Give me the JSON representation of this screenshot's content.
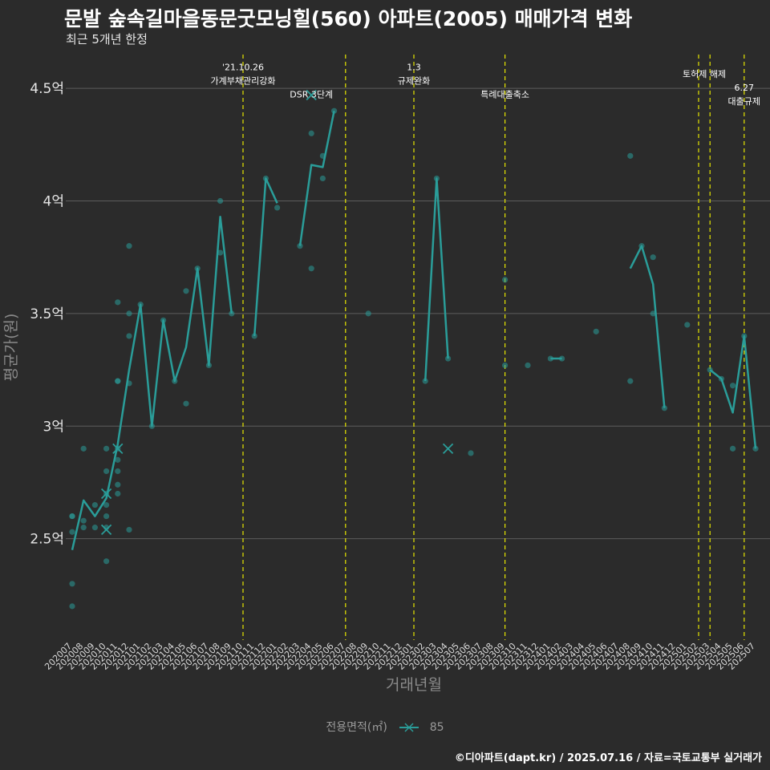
{
  "title": "문발 숲속길마을동문굿모닝힐(560) 아파트(2005) 매매가격 변화",
  "subtitle": "최근 5개년 한정",
  "caption": "©디아파트(dapt.kr) / 2025.07.16 / 자료=국토교통부 실거래가",
  "colors": {
    "background": "#2b2b2b",
    "series": "#2a9d99",
    "vline": "#e6e600",
    "grid": "#5c5c5c"
  },
  "legend": {
    "title": "전용면적(㎡)",
    "label": "85"
  },
  "chart_data": {
    "type": "line",
    "xlabel": "거래년월",
    "ylabel": "평균가(원)",
    "ylim": [
      2.05,
      4.65
    ],
    "y_ticks": [
      {
        "v": 2.5,
        "label": "2.5억"
      },
      {
        "v": 3.0,
        "label": "3억"
      },
      {
        "v": 3.5,
        "label": "3.5억"
      },
      {
        "v": 4.0,
        "label": "4억"
      },
      {
        "v": 4.5,
        "label": "4.5억"
      }
    ],
    "categories": [
      "202007",
      "202008",
      "202009",
      "202010",
      "202011",
      "202012",
      "202101",
      "202102",
      "202103",
      "202104",
      "202105",
      "202106",
      "202107",
      "202108",
      "202109",
      "202110",
      "202111",
      "202112",
      "202201",
      "202202",
      "202203",
      "202204",
      "202205",
      "202206",
      "202207",
      "202208",
      "202209",
      "202210",
      "202211",
      "202212",
      "202301",
      "202302",
      "202303",
      "202304",
      "202305",
      "202306",
      "202307",
      "202308",
      "202309",
      "202310",
      "202311",
      "202312",
      "202401",
      "202402",
      "202403",
      "202404",
      "202405",
      "202406",
      "202407",
      "202408",
      "202409",
      "202410",
      "202411",
      "202412",
      "202501",
      "202502",
      "202503",
      "202504",
      "202505",
      "202506",
      "202507"
    ],
    "series": [
      {
        "name": "85",
        "segments": [
          [
            [
              0,
              2.45
            ],
            [
              1,
              2.67
            ],
            [
              2,
              2.6
            ],
            [
              3,
              2.68
            ],
            [
              4,
              2.92
            ],
            [
              5,
              3.25
            ],
            [
              6,
              3.54
            ],
            [
              7,
              3.0
            ],
            [
              8,
              3.47
            ],
            [
              9,
              3.2
            ],
            [
              10,
              3.35
            ],
            [
              11,
              3.7
            ],
            [
              12,
              3.27
            ],
            [
              13,
              3.93
            ],
            [
              14,
              3.5
            ]
          ],
          [
            [
              16,
              3.4
            ],
            [
              17,
              4.1
            ],
            [
              18,
              3.99
            ]
          ],
          [
            [
              20,
              3.8
            ],
            [
              21,
              4.16
            ],
            [
              22,
              4.15
            ],
            [
              23,
              4.4
            ]
          ],
          [
            [
              31,
              3.2
            ],
            [
              32,
              4.1
            ],
            [
              33,
              3.3
            ]
          ],
          [
            [
              42,
              3.3
            ],
            [
              43,
              3.3
            ]
          ],
          [
            [
              49,
              3.7
            ],
            [
              50,
              3.8
            ],
            [
              51,
              3.63
            ],
            [
              52,
              3.08
            ]
          ],
          [
            [
              56,
              3.25
            ],
            [
              57,
              3.21
            ],
            [
              58,
              3.06
            ],
            [
              59,
              3.4
            ],
            [
              60,
              2.9
            ]
          ]
        ]
      }
    ],
    "points": [
      [
        0,
        2.6
      ],
      [
        0,
        2.53
      ],
      [
        0,
        2.3
      ],
      [
        0,
        2.2
      ],
      [
        0,
        2.6
      ],
      [
        1,
        2.9
      ],
      [
        1,
        2.58
      ],
      [
        1,
        2.55
      ],
      [
        2,
        2.65
      ],
      [
        2,
        2.55
      ],
      [
        3,
        2.9
      ],
      [
        3,
        2.8
      ],
      [
        3,
        2.7
      ],
      [
        3,
        2.65
      ],
      [
        3,
        2.6
      ],
      [
        3,
        2.55
      ],
      [
        3,
        2.4
      ],
      [
        4,
        3.55
      ],
      [
        4,
        3.2
      ],
      [
        4,
        2.9
      ],
      [
        4,
        2.85
      ],
      [
        4,
        2.8
      ],
      [
        4,
        2.74
      ],
      [
        4,
        2.7
      ],
      [
        4,
        3.2
      ],
      [
        5,
        3.8
      ],
      [
        5,
        3.5
      ],
      [
        5,
        3.4
      ],
      [
        5,
        3.19
      ],
      [
        5,
        2.54
      ],
      [
        6,
        3.54
      ],
      [
        7,
        3.0
      ],
      [
        8,
        3.47
      ],
      [
        9,
        3.2
      ],
      [
        10,
        3.6
      ],
      [
        10,
        3.1
      ],
      [
        11,
        3.7
      ],
      [
        12,
        3.27
      ],
      [
        13,
        4.0
      ],
      [
        13,
        3.77
      ],
      [
        14,
        3.5
      ],
      [
        16,
        3.4
      ],
      [
        17,
        4.1
      ],
      [
        18,
        3.97
      ],
      [
        20,
        3.8
      ],
      [
        21,
        4.3
      ],
      [
        21,
        3.7
      ],
      [
        22,
        4.2
      ],
      [
        22,
        4.1
      ],
      [
        23,
        4.4
      ],
      [
        26,
        3.5
      ],
      [
        31,
        3.2
      ],
      [
        32,
        4.1
      ],
      [
        33,
        3.3
      ],
      [
        35,
        2.88
      ],
      [
        38,
        3.65
      ],
      [
        38,
        3.27
      ],
      [
        40,
        3.27
      ],
      [
        42,
        3.3
      ],
      [
        43,
        3.3
      ],
      [
        46,
        3.42
      ],
      [
        49,
        4.2
      ],
      [
        49,
        3.2
      ],
      [
        50,
        3.8
      ],
      [
        51,
        3.75
      ],
      [
        51,
        3.5
      ],
      [
        52,
        3.08
      ],
      [
        54,
        3.45
      ],
      [
        56,
        3.25
      ],
      [
        57,
        3.21
      ],
      [
        58,
        3.18
      ],
      [
        58,
        2.9
      ],
      [
        59,
        3.4
      ],
      [
        60,
        2.9
      ]
    ],
    "crosses": [
      [
        3,
        2.54
      ],
      [
        3,
        2.7
      ],
      [
        4,
        2.9
      ],
      [
        21,
        4.47
      ],
      [
        33,
        2.9
      ]
    ],
    "vlines": [
      15,
      24,
      30,
      38,
      55,
      56,
      59
    ],
    "annotations": [
      {
        "x": 15,
        "y": 4.58,
        "text": "'21.10.26"
      },
      {
        "x": 15,
        "y": 4.52,
        "text": "가계부채관리강화"
      },
      {
        "x": 30,
        "y": 4.58,
        "text": "1.3"
      },
      {
        "x": 30,
        "y": 4.52,
        "text": "규제완화"
      },
      {
        "x": 21,
        "y": 4.46,
        "text": "DSR 3단계"
      },
      {
        "x": 38,
        "y": 4.46,
        "text": "특례대출축소"
      },
      {
        "x": 55.5,
        "y": 4.55,
        "text": "토허제 해제"
      },
      {
        "x": 59,
        "y": 4.49,
        "text": "6.27"
      },
      {
        "x": 59,
        "y": 4.43,
        "text": "대출규제"
      }
    ]
  }
}
